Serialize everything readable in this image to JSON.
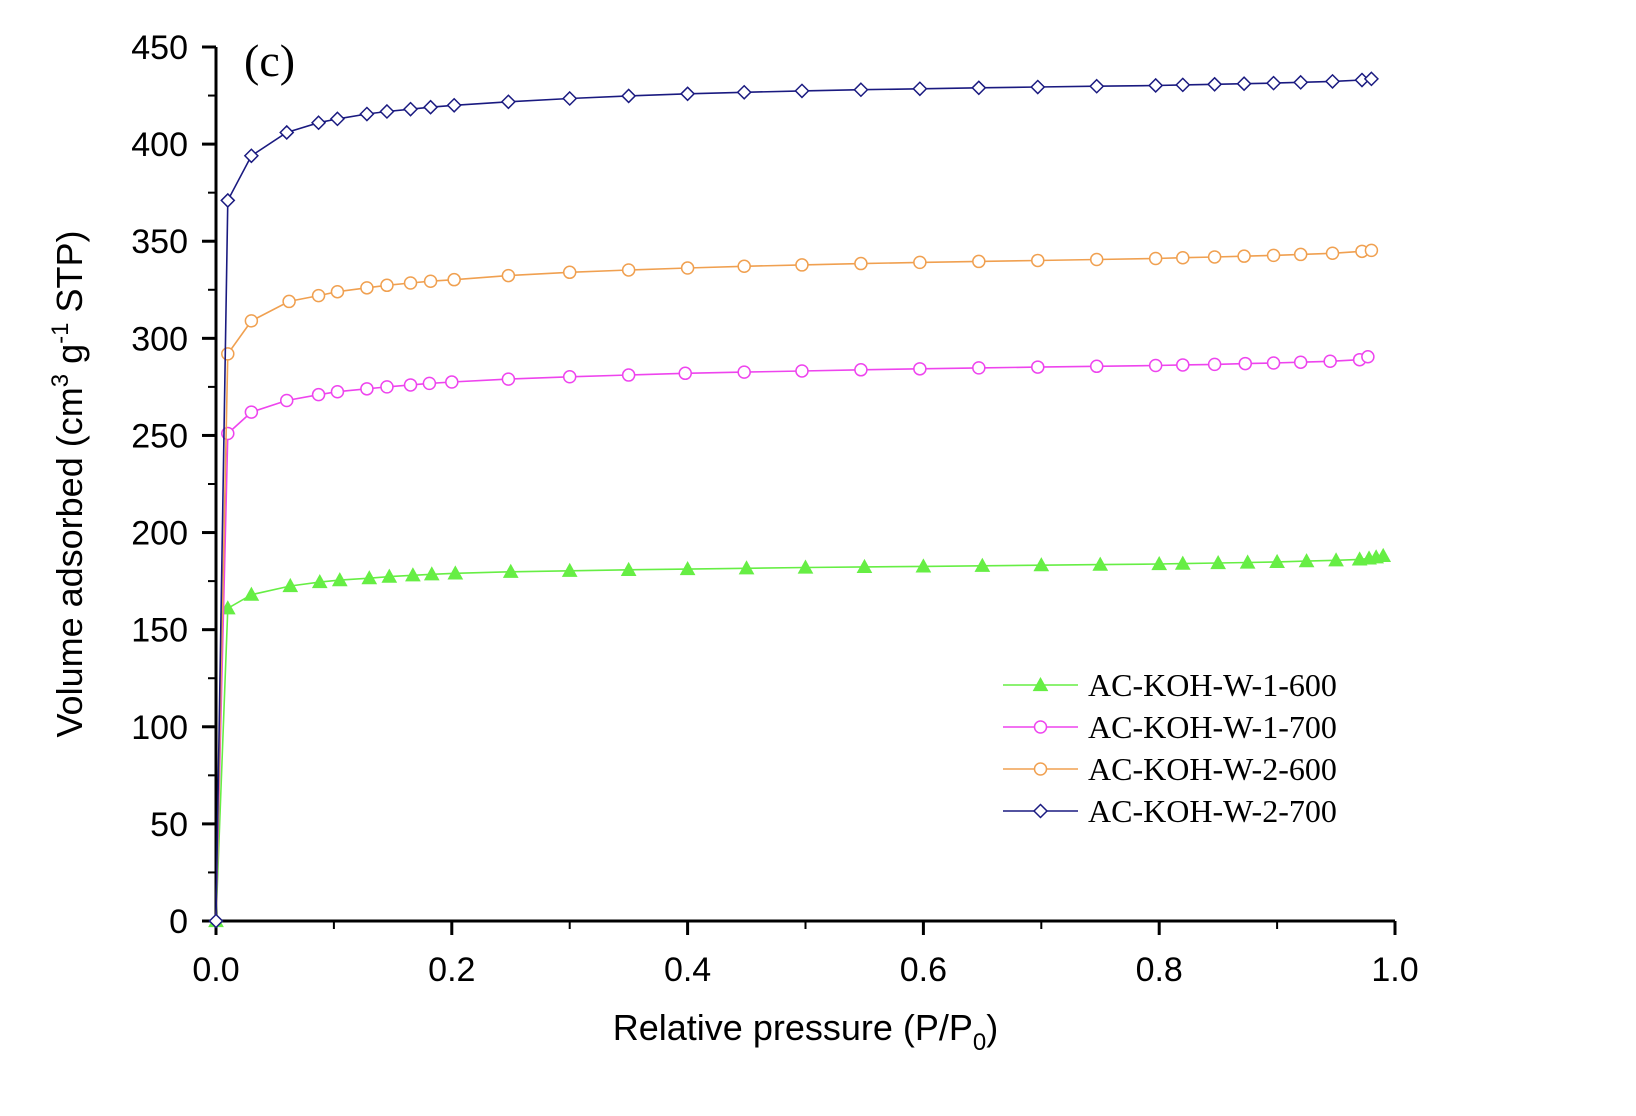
{
  "chart_data": {
    "type": "line",
    "panel_label": "(c)",
    "xlabel": {
      "main": "Relative pressure (P/P",
      "sub": "0",
      "close": ")"
    },
    "ylabel": {
      "part1": "Volume adsorbed (cm",
      "sup1": "3",
      "part2": " g",
      "sup2": "-1",
      "part3": " STP)"
    },
    "xlim": [
      0.0,
      1.0
    ],
    "ylim": [
      0,
      450
    ],
    "xticks": [
      "0.0",
      "0.2",
      "0.4",
      "0.6",
      "0.8",
      "1.0"
    ],
    "yticks": [
      "0",
      "50",
      "100",
      "150",
      "200",
      "250",
      "300",
      "350",
      "400",
      "450"
    ],
    "legend_position": "lower-right",
    "series": [
      {
        "name": "AC-KOH-W-1-600",
        "color": "#66ee44",
        "marker": "filled-triangle",
        "x": [
          0,
          0.01,
          0.03,
          0.063,
          0.088,
          0.105,
          0.13,
          0.147,
          0.167,
          0.183,
          0.203,
          0.25,
          0.3,
          0.35,
          0.4,
          0.45,
          0.5,
          0.55,
          0.6,
          0.65,
          0.7,
          0.75,
          0.8,
          0.82,
          0.85,
          0.875,
          0.9,
          0.925,
          0.95,
          0.97,
          0.978,
          0.984,
          0.99
        ],
        "y": [
          0,
          161,
          168,
          172.5,
          174.5,
          175.5,
          176.5,
          177.3,
          178,
          178.5,
          179,
          179.8,
          180.3,
          180.8,
          181.2,
          181.6,
          182,
          182.3,
          182.6,
          182.9,
          183.2,
          183.5,
          183.8,
          184,
          184.3,
          184.6,
          184.9,
          185.3,
          185.7,
          186.2,
          186.7,
          187.3,
          188
        ]
      },
      {
        "name": "AC-KOH-W-1-700",
        "color": "#ee44ee",
        "marker": "open-circle",
        "x": [
          0.01,
          0.03,
          0.06,
          0.087,
          0.103,
          0.128,
          0.145,
          0.165,
          0.181,
          0.2,
          0.248,
          0.3,
          0.35,
          0.398,
          0.448,
          0.497,
          0.547,
          0.597,
          0.647,
          0.697,
          0.747,
          0.797,
          0.82,
          0.847,
          0.873,
          0.897,
          0.92,
          0.945,
          0.97,
          0.977
        ],
        "y": [
          251,
          262,
          268,
          271,
          272.5,
          274,
          275,
          276,
          276.8,
          277.5,
          279,
          280.2,
          281.1,
          282,
          282.6,
          283.2,
          283.8,
          284.3,
          284.8,
          285.2,
          285.6,
          286,
          286.3,
          286.6,
          287,
          287.3,
          287.7,
          288.2,
          289,
          290.5
        ]
      },
      {
        "name": "AC-KOH-W-2-600",
        "color": "#f0a050",
        "marker": "open-circle",
        "x": [
          0.01,
          0.03,
          0.062,
          0.087,
          0.103,
          0.128,
          0.145,
          0.165,
          0.182,
          0.202,
          0.248,
          0.3,
          0.35,
          0.4,
          0.448,
          0.497,
          0.547,
          0.597,
          0.647,
          0.697,
          0.747,
          0.797,
          0.82,
          0.847,
          0.872,
          0.897,
          0.92,
          0.947,
          0.972,
          0.98
        ],
        "y": [
          292,
          309,
          319,
          322,
          324,
          326,
          327.3,
          328.5,
          329.4,
          330.2,
          332.3,
          334,
          335.2,
          336.2,
          337.1,
          337.8,
          338.5,
          339.1,
          339.6,
          340.1,
          340.6,
          341.1,
          341.5,
          341.9,
          342.3,
          342.7,
          343.2,
          343.8,
          344.8,
          345.3
        ]
      },
      {
        "name": "AC-KOH-W-2-700",
        "color": "#1a1a80",
        "marker": "open-diamond",
        "x": [
          0,
          0.01,
          0.03,
          0.06,
          0.087,
          0.103,
          0.128,
          0.145,
          0.165,
          0.182,
          0.202,
          0.248,
          0.3,
          0.35,
          0.4,
          0.448,
          0.497,
          0.547,
          0.597,
          0.647,
          0.697,
          0.747,
          0.797,
          0.82,
          0.847,
          0.872,
          0.897,
          0.92,
          0.947,
          0.972,
          0.98
        ],
        "y": [
          0,
          371,
          394,
          406,
          411,
          413,
          415.5,
          416.8,
          418,
          419,
          420,
          421.8,
          423.5,
          424.8,
          425.9,
          426.7,
          427.4,
          428,
          428.5,
          429,
          429.4,
          429.8,
          430.2,
          430.5,
          430.8,
          431.1,
          431.4,
          431.8,
          432.3,
          433,
          433.6
        ]
      }
    ]
  }
}
